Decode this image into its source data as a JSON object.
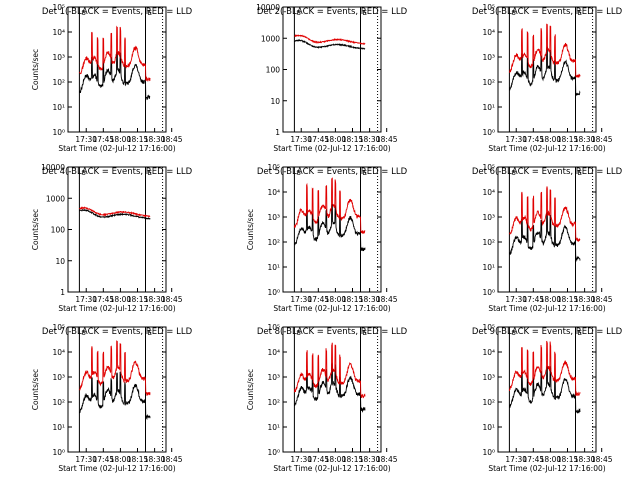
{
  "chart_data": [
    {
      "type": "line",
      "title": "Det 1(-BLACK = Events, RED = LLD",
      "xlabel": "Start Time (02-Jul-12 17:16:00)",
      "ylabel": "Counts/sec",
      "yscale": "log",
      "ylim": [
        1,
        100000
      ],
      "ytick_labels": [
        "10⁰",
        "10¹",
        "10²",
        "10³",
        "10⁴",
        "10⁵"
      ],
      "xticks": [
        "17:30",
        "17:45",
        "18:00",
        "18:15",
        "18:30",
        "18:45"
      ],
      "xlim_minutes": [
        14,
        100
      ],
      "markers": [
        {
          "label": "S",
          "x": 24
        },
        {
          "label": "E",
          "x": 82
        },
        {
          "label": "",
          "x": 97
        }
      ],
      "profile": "spiky",
      "base": {
        "black": 30,
        "red": 150
      },
      "series": [
        {
          "name": "Events",
          "color": "#000000"
        },
        {
          "name": "LLD",
          "color": "#e00000"
        }
      ]
    },
    {
      "type": "line",
      "title": "Det 2(-BLACK = Events, RED = LLD",
      "xlabel": "Start Time (02-Jul-12 17:16:00)",
      "ylabel": "",
      "yscale": "log",
      "ylim": [
        1,
        10000
      ],
      "ytick_labels": [
        "1",
        "10",
        "100",
        "1000",
        "10000"
      ],
      "xticks": [
        "17:30",
        "17:45",
        "18:00",
        "18:15",
        "18:30",
        "18:45"
      ],
      "xlim_minutes": [
        14,
        100
      ],
      "markers": [
        {
          "label": "S",
          "x": 24
        },
        {
          "label": "E",
          "x": 82
        },
        {
          "label": "",
          "x": 97
        }
      ],
      "profile": "smooth",
      "base": {
        "black": 450,
        "red": 650
      },
      "series": [
        {
          "name": "Events",
          "color": "#000000"
        },
        {
          "name": "LLD",
          "color": "#e00000"
        }
      ]
    },
    {
      "type": "line",
      "title": "Det 3(-BLACK = Events, RED = LLD",
      "xlabel": "Start Time (02-Jul-12 17:16:00)",
      "ylabel": "",
      "yscale": "log",
      "ylim": [
        1,
        100000
      ],
      "ytick_labels": [
        "10⁰",
        "10¹",
        "10²",
        "10³",
        "10⁴",
        "10⁵"
      ],
      "xticks": [
        "17:30",
        "17:45",
        "18:00",
        "18:15",
        "18:30",
        "18:45"
      ],
      "xlim_minutes": [
        14,
        100
      ],
      "markers": [
        {
          "label": "S",
          "x": 24
        },
        {
          "label": "E",
          "x": 82
        },
        {
          "label": "",
          "x": 97
        }
      ],
      "profile": "spiky",
      "base": {
        "black": 40,
        "red": 200
      },
      "series": [
        {
          "name": "Events",
          "color": "#000000"
        },
        {
          "name": "LLD",
          "color": "#e00000"
        }
      ]
    },
    {
      "type": "line",
      "title": "Det 4(-BLACK = Events, RED = LLD",
      "xlabel": "Start Time (02-Jul-12 17:16:00)",
      "ylabel": "Counts/sec",
      "yscale": "log",
      "ylim": [
        1,
        10000
      ],
      "ytick_labels": [
        "1",
        "10",
        "100",
        "1000",
        "10000"
      ],
      "xticks": [
        "17:30",
        "17:45",
        "18:00",
        "18:15",
        "18:30",
        "18:45"
      ],
      "xlim_minutes": [
        14,
        100
      ],
      "markers": [
        {
          "label": "S",
          "x": 24
        },
        {
          "label": "E",
          "x": 82
        },
        {
          "label": "",
          "x": 97
        }
      ],
      "profile": "smooth",
      "base": {
        "black": 220,
        "red": 260
      },
      "series": [
        {
          "name": "Events",
          "color": "#000000"
        },
        {
          "name": "LLD",
          "color": "#e00000"
        }
      ]
    },
    {
      "type": "line",
      "title": "Det 5(-BLACK = Events, RED = LLD",
      "xlabel": "Start Time (02-Jul-12 17:16:00)",
      "ylabel": "Counts/sec",
      "yscale": "log",
      "ylim": [
        1,
        100000
      ],
      "ytick_labels": [
        "10⁰",
        "10¹",
        "10²",
        "10³",
        "10⁴",
        "10⁵"
      ],
      "xticks": [
        "17:30",
        "17:45",
        "18:00",
        "18:15",
        "18:30",
        "18:45"
      ],
      "xlim_minutes": [
        14,
        100
      ],
      "markers": [
        {
          "label": "S",
          "x": 24
        },
        {
          "label": "E",
          "x": 82
        },
        {
          "label": "",
          "x": 97
        }
      ],
      "profile": "spiky",
      "base": {
        "black": 60,
        "red": 300
      },
      "series": [
        {
          "name": "Events",
          "color": "#000000"
        },
        {
          "name": "LLD",
          "color": "#e00000"
        }
      ]
    },
    {
      "type": "line",
      "title": "Det 6(-BLACK = Events, RED = LLD",
      "xlabel": "Start Time (02-Jul-12 17:16:00)",
      "ylabel": "",
      "yscale": "log",
      "ylim": [
        1,
        100000
      ],
      "ytick_labels": [
        "10⁰",
        "10¹",
        "10²",
        "10³",
        "10⁴",
        "10⁵"
      ],
      "xticks": [
        "17:30",
        "17:45",
        "18:00",
        "18:15",
        "18:30",
        "18:45"
      ],
      "xlim_minutes": [
        14,
        100
      ],
      "markers": [
        {
          "label": "S",
          "x": 24
        },
        {
          "label": "E",
          "x": 82
        },
        {
          "label": "",
          "x": 97
        }
      ],
      "profile": "spiky",
      "base": {
        "black": 25,
        "red": 150
      },
      "series": [
        {
          "name": "Events",
          "color": "#000000"
        },
        {
          "name": "LLD",
          "color": "#e00000"
        }
      ]
    },
    {
      "type": "line",
      "title": "Det 7(-BLACK = Events, RED = LLD",
      "xlabel": "Start Time (02-Jul-12 17:16:00)",
      "ylabel": "Counts/sec",
      "yscale": "log",
      "ylim": [
        1,
        100000
      ],
      "ytick_labels": [
        "10⁰",
        "10¹",
        "10²",
        "10³",
        "10⁴",
        "10⁵"
      ],
      "xticks": [
        "17:30",
        "17:45",
        "18:00",
        "18:15",
        "18:30",
        "18:45"
      ],
      "xlim_minutes": [
        14,
        100
      ],
      "markers": [
        {
          "label": "S",
          "x": 24
        },
        {
          "label": "E",
          "x": 82
        },
        {
          "label": "",
          "x": 97
        }
      ],
      "profile": "spiky",
      "base": {
        "black": 30,
        "red": 250
      },
      "series": [
        {
          "name": "Events",
          "color": "#000000"
        },
        {
          "name": "LLD",
          "color": "#e00000"
        }
      ]
    },
    {
      "type": "line",
      "title": "Det 8(-BLACK = Events, RED = LLD",
      "xlabel": "Start Time (02-Jul-12 17:16:00)",
      "ylabel": "Counts/sec",
      "yscale": "log",
      "ylim": [
        1,
        100000
      ],
      "ytick_labels": [
        "10⁰",
        "10¹",
        "10²",
        "10³",
        "10⁴",
        "10⁵"
      ],
      "xticks": [
        "17:30",
        "17:45",
        "18:00",
        "18:15",
        "18:30",
        "18:45"
      ],
      "xlim_minutes": [
        14,
        100
      ],
      "markers": [
        {
          "label": "S",
          "x": 24
        },
        {
          "label": "E",
          "x": 82
        },
        {
          "label": "",
          "x": 97
        }
      ],
      "profile": "spiky",
      "base": {
        "black": 60,
        "red": 200
      },
      "series": [
        {
          "name": "Events",
          "color": "#000000"
        },
        {
          "name": "LLD",
          "color": "#e00000"
        }
      ]
    },
    {
      "type": "line",
      "title": "Det 9(-BLACK = Events, RED = LLD",
      "xlabel": "Start Time (02-Jul-12 17:16:00)",
      "ylabel": "",
      "yscale": "log",
      "ylim": [
        1,
        100000
      ],
      "ytick_labels": [
        "10⁰",
        "10¹",
        "10²",
        "10³",
        "10⁴",
        "10⁵"
      ],
      "xticks": [
        "17:30",
        "17:45",
        "18:00",
        "18:15",
        "18:30",
        "18:45"
      ],
      "xlim_minutes": [
        14,
        100
      ],
      "markers": [
        {
          "label": "S",
          "x": 24
        },
        {
          "label": "E",
          "x": 82
        },
        {
          "label": "",
          "x": 97
        }
      ],
      "profile": "spiky",
      "base": {
        "black": 50,
        "red": 250
      },
      "series": [
        {
          "name": "Events",
          "color": "#000000"
        },
        {
          "name": "LLD",
          "color": "#e00000"
        }
      ]
    }
  ]
}
